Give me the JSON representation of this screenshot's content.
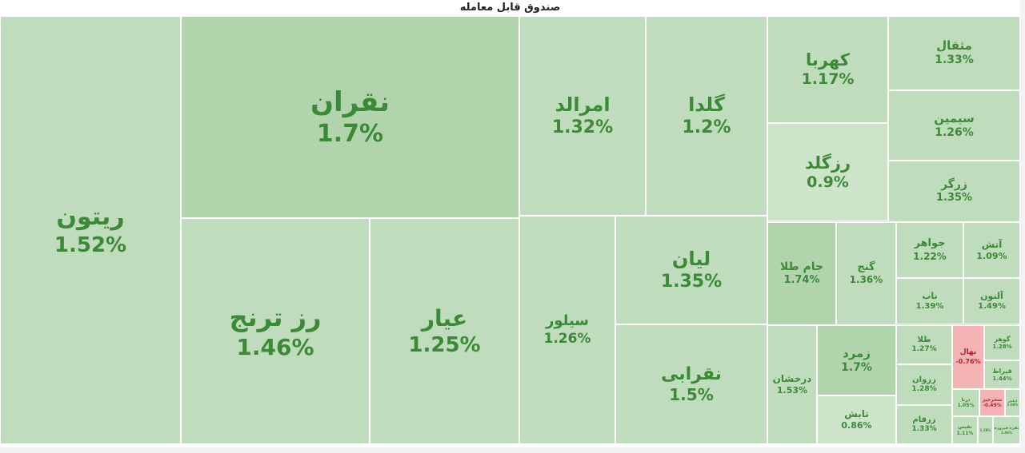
{
  "title": "صندوق قابل معامله",
  "colors": {
    "positive_fill": "#bfdcbc",
    "positive_fill_strong": "#b2d4ad",
    "positive_fill_light": "#cde4ca",
    "positive_text": "#3c8a37",
    "negative_fill": "#f4b4b6",
    "negative_text": "#b3232a"
  },
  "chart_data": {
    "type": "treemap",
    "title": "صندوق قابل معامله",
    "items": [
      {
        "name": "ريتون",
        "label": "1.52%",
        "change": 1.52
      },
      {
        "name": "نقران",
        "label": "1.7%",
        "change": 1.7
      },
      {
        "name": "رز ترنج",
        "label": "1.46%",
        "change": 1.46
      },
      {
        "name": "عيار",
        "label": "1.25%",
        "change": 1.25
      },
      {
        "name": "امرالد",
        "label": "1.32%",
        "change": 1.32
      },
      {
        "name": "گلدا",
        "label": "1.2%",
        "change": 1.2
      },
      {
        "name": "سيلور",
        "label": "1.26%",
        "change": 1.26
      },
      {
        "name": "ليان",
        "label": "1.35%",
        "change": 1.35
      },
      {
        "name": "نقرابی",
        "label": "1.5%",
        "change": 1.5
      },
      {
        "name": "كهربا",
        "label": "1.17%",
        "change": 1.17
      },
      {
        "name": "رزگلد",
        "label": "0.9%",
        "change": 0.9
      },
      {
        "name": "مثقال",
        "label": "1.33%",
        "change": 1.33
      },
      {
        "name": "سيمين",
        "label": "1.26%",
        "change": 1.26
      },
      {
        "name": "زرگر",
        "label": "1.35%",
        "change": 1.35
      },
      {
        "name": "جام طلا",
        "label": "1.74%",
        "change": 1.74
      },
      {
        "name": "گنج",
        "label": "1.36%",
        "change": 1.36
      },
      {
        "name": "جواهر",
        "label": "1.22%",
        "change": 1.22
      },
      {
        "name": "آتش",
        "label": "1.09%",
        "change": 1.09
      },
      {
        "name": "ناب",
        "label": "1.39%",
        "change": 1.39
      },
      {
        "name": "آلتون",
        "label": "1.49%",
        "change": 1.49
      },
      {
        "name": "درخشان",
        "label": "1.53%",
        "change": 1.53
      },
      {
        "name": "زمرد",
        "label": "1.7%",
        "change": 1.7
      },
      {
        "name": "تابش",
        "label": "0.86%",
        "change": 0.86
      },
      {
        "name": "طلا",
        "label": "1.27%",
        "change": 1.27
      },
      {
        "name": "زروان",
        "label": "1.28%",
        "change": 1.28
      },
      {
        "name": "زرفام",
        "label": "1.33%",
        "change": 1.33
      },
      {
        "name": "نهال",
        "label": "-0.76%",
        "change": -0.76
      },
      {
        "name": "گوهر",
        "label": "1.28%",
        "change": 1.28
      },
      {
        "name": "قيراط",
        "label": "1.44%",
        "change": 1.44
      },
      {
        "name": "درنا",
        "label": "1.05%",
        "change": 1.05
      },
      {
        "name": "سحرخيز",
        "label": "-0.49%",
        "change": -0.49
      },
      {
        "name": "لعلس",
        "label": "1.00%",
        "change": 1.0
      },
      {
        "name": "نفيس",
        "label": "1.11%",
        "change": 1.11
      },
      {
        "name": "",
        "label": "1.28%",
        "change": 1.28
      },
      {
        "name": "نقره فيروزه",
        "label": "1.46%",
        "change": 1.46
      }
    ]
  }
}
